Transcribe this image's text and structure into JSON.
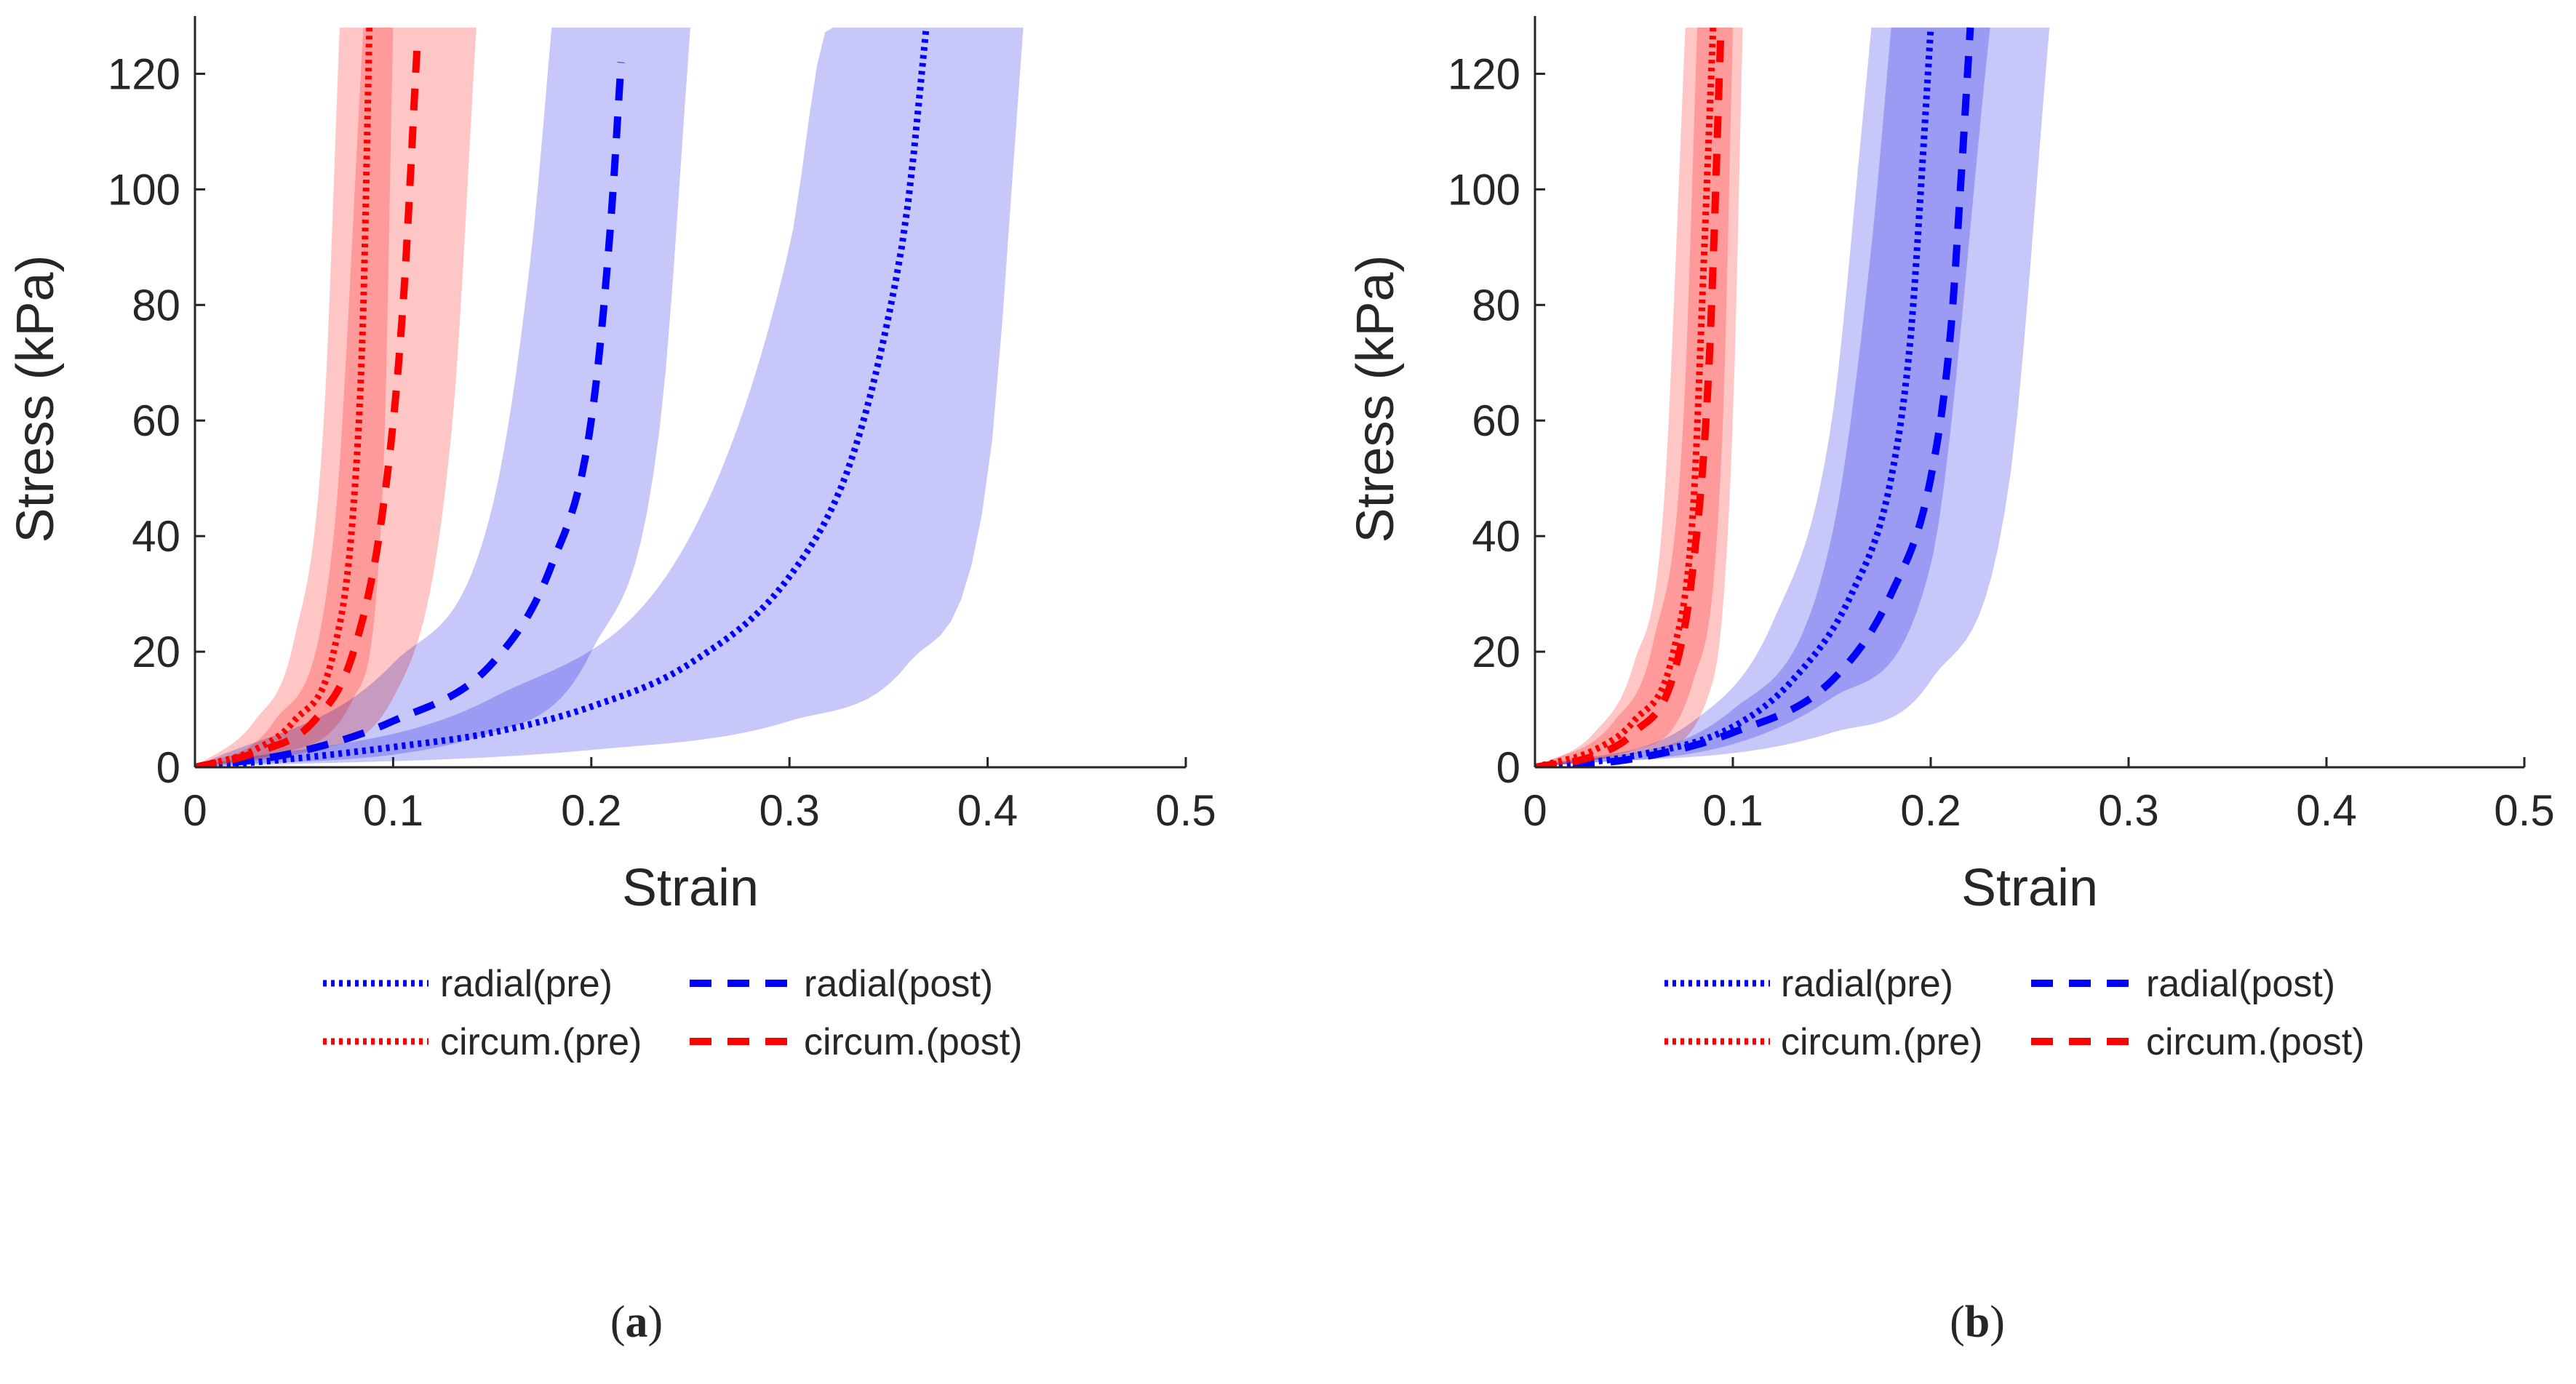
{
  "colors": {
    "radial": "#0000ff",
    "circum": "#ff0000",
    "radial_band": "#a5a5f5",
    "radial_band_overlap": "#7878ee",
    "circum_band": "#ffa3a3",
    "circum_band_overlap": "#f77d7d",
    "axis": "#262626"
  },
  "chart_data": [
    {
      "type": "line",
      "panel_label": "a",
      "caption": {
        "open": "(",
        "letter": "a",
        "close": ")"
      },
      "xlabel": "Strain",
      "ylabel": "Stress (kPa)",
      "xlim": [
        0,
        0.5
      ],
      "ylim": [
        0,
        130
      ],
      "xticks": [
        0,
        0.1,
        0.2,
        0.3,
        0.4,
        0.5
      ],
      "xtick_labels": [
        "0",
        "0.1",
        "0.2",
        "0.3",
        "0.4",
        "0.5"
      ],
      "yticks": [
        0,
        20,
        40,
        60,
        80,
        100,
        120
      ],
      "ytick_labels": [
        "0",
        "20",
        "40",
        "60",
        "80",
        "100",
        "120"
      ],
      "series": [
        {
          "name": "radial(pre)",
          "color": "radial",
          "dash": "dotted",
          "x": [
            0,
            0.05,
            0.1,
            0.15,
            0.2,
            0.25,
            0.3,
            0.33,
            0.35,
            0.36,
            0.369
          ],
          "y": [
            0,
            1.5,
            3.5,
            6,
            10.5,
            18,
            33,
            52,
            78,
            98,
            128
          ],
          "band_lower_x": [
            0,
            0.15,
            0.25,
            0.3,
            0.32,
            0.322
          ],
          "band_lower_y": [
            0,
            12,
            40,
            90,
            128,
            128
          ],
          "band_upper_x": [
            0,
            0.2,
            0.3,
            0.36,
            0.4,
            0.418
          ],
          "band_upper_y": [
            0,
            3,
            8,
            18,
            50,
            128
          ]
        },
        {
          "name": "radial(post)",
          "color": "radial",
          "dash": "dashed",
          "x": [
            0,
            0.05,
            0.1,
            0.15,
            0.18,
            0.2,
            0.21,
            0.215
          ],
          "y": [
            0,
            2.5,
            8,
            18,
            35,
            60,
            95,
            122
          ],
          "band_lower_x": [
            0,
            0.1,
            0.15,
            0.17,
            0.18
          ],
          "band_lower_y": [
            0,
            18,
            45,
            90,
            128
          ],
          "band_upper_x": [
            0,
            0.15,
            0.2,
            0.235,
            0.25
          ],
          "band_upper_y": [
            0,
            6,
            20,
            60,
            128
          ]
        },
        {
          "name": "circum.(pre)",
          "color": "circum",
          "dash": "dotted",
          "x": [
            0,
            0.03,
            0.05,
            0.07,
            0.08,
            0.085,
            0.088
          ],
          "y": [
            0,
            3,
            8,
            20,
            45,
            80,
            128
          ],
          "band_lower_x": [
            0,
            0.03,
            0.05,
            0.065,
            0.073
          ],
          "band_lower_y": [
            0,
            8,
            22,
            60,
            128
          ],
          "band_upper_x": [
            0,
            0.05,
            0.08,
            0.095,
            0.1
          ],
          "band_upper_y": [
            0,
            3,
            12,
            50,
            128
          ]
        },
        {
          "name": "circum.(post)",
          "color": "circum",
          "dash": "dashed",
          "x": [
            0,
            0.03,
            0.06,
            0.08,
            0.095,
            0.105,
            0.112
          ],
          "y": [
            0,
            2.5,
            8,
            20,
            45,
            80,
            124
          ],
          "band_lower_x": [
            0,
            0.04,
            0.07,
            0.085
          ],
          "band_lower_y": [
            0,
            8,
            40,
            128
          ],
          "band_upper_x": [
            0,
            0.06,
            0.1,
            0.13,
            0.142
          ],
          "band_upper_y": [
            0,
            3,
            12,
            60,
            128
          ]
        }
      ],
      "legend": {
        "placement": "below-axes",
        "entries": [
          "radial(pre)",
          "radial(post)",
          "circum.(pre)",
          "circum.(post)"
        ]
      }
    },
    {
      "type": "line",
      "panel_label": "b",
      "caption": {
        "open": "(",
        "letter": "b",
        "close": ")"
      },
      "xlabel": "Strain",
      "ylabel": "Stress (kPa)",
      "xlim": [
        0,
        0.5
      ],
      "ylim": [
        0,
        130
      ],
      "xticks": [
        0,
        0.1,
        0.2,
        0.3,
        0.4,
        0.5
      ],
      "xtick_labels": [
        "0",
        "0.1",
        "0.2",
        "0.3",
        "0.4",
        "0.5"
      ],
      "yticks": [
        0,
        20,
        40,
        60,
        80,
        100,
        120
      ],
      "ytick_labels": [
        "0",
        "20",
        "40",
        "60",
        "80",
        "100",
        "120"
      ],
      "series": [
        {
          "name": "radial(pre)",
          "color": "radial",
          "dash": "dotted",
          "x": [
            0,
            0.05,
            0.1,
            0.13,
            0.16,
            0.18,
            0.19,
            0.195,
            0.2
          ],
          "y": [
            0,
            2,
            7,
            15,
            30,
            50,
            75,
            100,
            128
          ],
          "band_lower_x": [
            0,
            0.08,
            0.12,
            0.15,
            0.165,
            0.17
          ],
          "band_lower_y": [
            0,
            8,
            25,
            60,
            110,
            128
          ],
          "band_upper_x": [
            0,
            0.1,
            0.15,
            0.2,
            0.23
          ],
          "band_upper_y": [
            0,
            4,
            12,
            35,
            128
          ]
        },
        {
          "name": "radial(post)",
          "color": "radial",
          "dash": "dashed",
          "x": [
            0,
            0.05,
            0.1,
            0.15,
            0.18,
            0.2,
            0.21,
            0.215,
            0.22
          ],
          "y": [
            0,
            1.5,
            6,
            15,
            30,
            50,
            75,
            100,
            128
          ],
          "band_lower_x": [
            0,
            0.1,
            0.15,
            0.17,
            0.18
          ],
          "band_lower_y": [
            0,
            10,
            40,
            90,
            128
          ],
          "band_upper_x": [
            0,
            0.15,
            0.2,
            0.24,
            0.26
          ],
          "band_upper_y": [
            0,
            6,
            15,
            50,
            128
          ]
        },
        {
          "name": "circum.(pre)",
          "color": "circum",
          "dash": "dotted",
          "x": [
            0,
            0.03,
            0.05,
            0.07,
            0.08,
            0.085,
            0.09
          ],
          "y": [
            0,
            3,
            8,
            20,
            45,
            85,
            128
          ],
          "band_lower_x": [
            0,
            0.03,
            0.05,
            0.065,
            0.076
          ],
          "band_lower_y": [
            0,
            6,
            18,
            45,
            128
          ],
          "band_upper_x": [
            0,
            0.05,
            0.08,
            0.095,
            0.1
          ],
          "band_upper_y": [
            0,
            3,
            15,
            60,
            128
          ]
        },
        {
          "name": "circum.(post)",
          "color": "circum",
          "dash": "dashed",
          "x": [
            0,
            0.03,
            0.05,
            0.07,
            0.08,
            0.088,
            0.094
          ],
          "y": [
            0,
            2,
            6,
            16,
            35,
            70,
            128
          ],
          "band_lower_x": [
            0,
            0.04,
            0.06,
            0.075,
            0.082
          ],
          "band_lower_y": [
            0,
            8,
            22,
            60,
            128
          ],
          "band_upper_x": [
            0,
            0.06,
            0.09,
            0.1,
            0.105
          ],
          "band_upper_y": [
            0,
            3,
            15,
            60,
            128
          ]
        }
      ],
      "legend": {
        "placement": "below-axes",
        "entries": [
          "radial(pre)",
          "radial(post)",
          "circum.(pre)",
          "circum.(post)"
        ]
      }
    }
  ]
}
